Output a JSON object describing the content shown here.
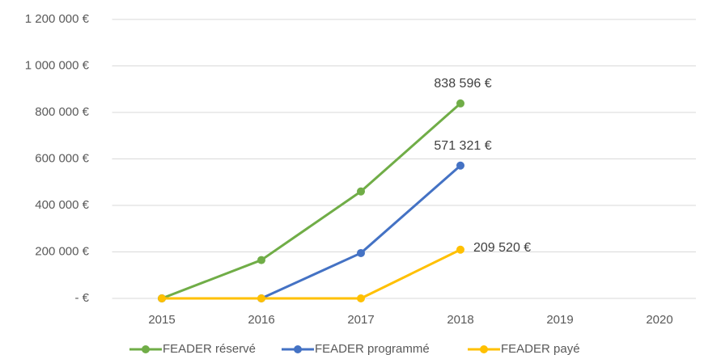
{
  "chart_data": {
    "type": "line",
    "categories": [
      "2015",
      "2016",
      "2017",
      "2018",
      "2019",
      "2020"
    ],
    "series": [
      {
        "name": "FEADER réservé",
        "color": "#70ad47",
        "values": [
          0,
          165000,
          460000,
          838596,
          null,
          null
        ],
        "value_labels": [
          null,
          null,
          null,
          "838 596 €",
          null,
          null
        ]
      },
      {
        "name": "FEADER programmé",
        "color": "#4472c4",
        "values": [
          0,
          0,
          195000,
          571321,
          null,
          null
        ],
        "value_labels": [
          null,
          null,
          null,
          "571 321 €",
          null,
          null
        ]
      },
      {
        "name": "FEADER payé",
        "color": "#ffc000",
        "values": [
          0,
          0,
          0,
          209520,
          null,
          null
        ],
        "value_labels": [
          null,
          null,
          null,
          "209 520 €",
          null,
          null
        ]
      }
    ],
    "ylim": [
      0,
      1200000
    ],
    "yticks": [
      {
        "value": 0,
        "label": "- €"
      },
      {
        "value": 200000,
        "label": "200 000 €"
      },
      {
        "value": 400000,
        "label": "400 000 €"
      },
      {
        "value": 600000,
        "label": "600 000 €"
      },
      {
        "value": 800000,
        "label": "800 000 €"
      },
      {
        "value": 1000000,
        "label": "1 000 000 €"
      },
      {
        "value": 1200000,
        "label": "1 200 000 €"
      }
    ],
    "grid": true,
    "legend": "bottom"
  }
}
